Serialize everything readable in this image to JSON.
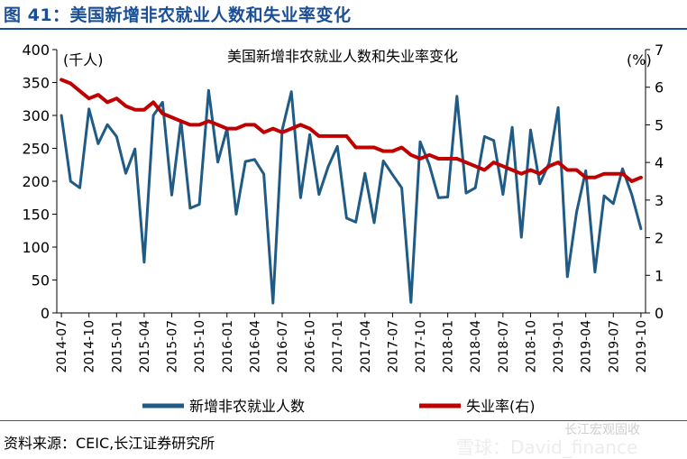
{
  "figure_title": "图 41：美国新增非农就业人数和失业率变化",
  "source": "资料来源：CEIC,长江证券研究所",
  "watermark": {
    "line1": "长江宏观固收",
    "line2": "雪球：David_finance"
  },
  "colors": {
    "title_blue": "#1a4f96",
    "payrolls_line": "#1f5b85",
    "unemployment_line": "#c00000"
  },
  "chart_data": {
    "type": "line",
    "title": "美国新增非农就业人数和失业率变化",
    "y_left_unit": "(千人)",
    "y_right_unit": "(%)",
    "y_left_range": [
      0,
      400
    ],
    "y_left_ticks": [
      0,
      50,
      100,
      150,
      200,
      250,
      300,
      350,
      400
    ],
    "y_right_range": [
      0,
      7
    ],
    "y_right_ticks": [
      0,
      1,
      2,
      3,
      4,
      5,
      6,
      7
    ],
    "x_tick_labels": [
      "2014-07",
      "2014-10",
      "2015-01",
      "2015-04",
      "2015-07",
      "2015-10",
      "2016-01",
      "2016-04",
      "2016-07",
      "2016-10",
      "2017-01",
      "2017-04",
      "2017-07",
      "2017-10",
      "2018-01",
      "2018-04",
      "2018-07",
      "2018-10",
      "2019-01",
      "2019-04",
      "2019-07",
      "2019-10"
    ],
    "legend_position": "bottom",
    "x": [
      "2014-07",
      "2014-08",
      "2014-09",
      "2014-10",
      "2014-11",
      "2014-12",
      "2015-01",
      "2015-02",
      "2015-03",
      "2015-04",
      "2015-05",
      "2015-06",
      "2015-07",
      "2015-08",
      "2015-09",
      "2015-10",
      "2015-11",
      "2015-12",
      "2016-01",
      "2016-02",
      "2016-03",
      "2016-04",
      "2016-05",
      "2016-06",
      "2016-07",
      "2016-08",
      "2016-09",
      "2016-10",
      "2016-11",
      "2016-12",
      "2017-01",
      "2017-02",
      "2017-03",
      "2017-04",
      "2017-05",
      "2017-06",
      "2017-07",
      "2017-08",
      "2017-09",
      "2017-10",
      "2017-11",
      "2017-12",
      "2018-01",
      "2018-02",
      "2018-03",
      "2018-04",
      "2018-05",
      "2018-06",
      "2018-07",
      "2018-08",
      "2018-09",
      "2018-10",
      "2018-11",
      "2018-12",
      "2019-01",
      "2019-02",
      "2019-03",
      "2019-04",
      "2019-05",
      "2019-06",
      "2019-07",
      "2019-08",
      "2019-09",
      "2019-10"
    ],
    "series": [
      {
        "name": "新增非农就业人数",
        "axis": "left",
        "values": [
          300,
          200,
          190,
          310,
          257,
          286,
          268,
          212,
          249,
          77,
          300,
          320,
          179,
          292,
          159,
          165,
          338,
          229,
          280,
          150,
          230,
          233,
          211,
          15,
          278,
          336,
          175,
          271,
          180,
          222,
          253,
          144,
          138,
          212,
          137,
          231,
          210,
          190,
          16,
          260,
          225,
          175,
          176,
          329,
          182,
          190,
          268,
          262,
          180,
          282,
          115,
          278,
          196,
          227,
          312,
          55,
          153,
          216,
          62,
          178,
          166,
          219,
          180,
          128
        ]
      },
      {
        "name": "失业率(右)",
        "axis": "right",
        "values": [
          6.2,
          6.1,
          5.9,
          5.7,
          5.8,
          5.6,
          5.7,
          5.5,
          5.4,
          5.4,
          5.6,
          5.3,
          5.2,
          5.1,
          5.0,
          5.0,
          5.1,
          5.0,
          4.9,
          4.9,
          5.0,
          5.0,
          4.8,
          4.9,
          4.8,
          4.9,
          5.0,
          4.9,
          4.7,
          4.7,
          4.7,
          4.7,
          4.4,
          4.4,
          4.4,
          4.3,
          4.3,
          4.4,
          4.2,
          4.1,
          4.2,
          4.1,
          4.1,
          4.1,
          4.0,
          3.9,
          3.8,
          4.0,
          3.9,
          3.8,
          3.7,
          3.8,
          3.7,
          3.9,
          4.0,
          3.8,
          3.8,
          3.6,
          3.6,
          3.7,
          3.7,
          3.7,
          3.5,
          3.6
        ]
      }
    ]
  }
}
